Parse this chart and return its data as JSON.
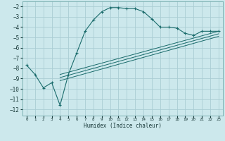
{
  "xlabel": "Humidex (Indice chaleur)",
  "background_color": "#cce8ec",
  "grid_color": "#aacdd4",
  "line_color": "#1a6b6b",
  "xlim": [
    -0.5,
    23.5
  ],
  "ylim": [
    -12.6,
    -1.5
  ],
  "yticks": [
    -2,
    -3,
    -4,
    -5,
    -6,
    -7,
    -8,
    -9,
    -10,
    -11,
    -12
  ],
  "xticks": [
    0,
    1,
    2,
    3,
    4,
    5,
    6,
    7,
    8,
    9,
    10,
    11,
    12,
    13,
    14,
    15,
    16,
    17,
    18,
    19,
    20,
    21,
    22,
    23
  ],
  "main_x": [
    0,
    1,
    2,
    3,
    4,
    5,
    6,
    7,
    8,
    9,
    10,
    11,
    12,
    13,
    14,
    15,
    16,
    17,
    18,
    19,
    20,
    21,
    22,
    23
  ],
  "main_y": [
    -7.7,
    -8.6,
    -9.9,
    -9.4,
    -11.6,
    -8.6,
    -6.5,
    -4.4,
    -3.3,
    -2.5,
    -2.1,
    -2.1,
    -2.2,
    -2.2,
    -2.5,
    -3.2,
    -4.0,
    -4.0,
    -4.1,
    -4.6,
    -4.8,
    -4.4,
    -4.4,
    -4.4
  ],
  "line2_x": [
    4,
    23
  ],
  "line2_y": [
    -8.6,
    -4.4
  ],
  "line3_x": [
    4,
    23
  ],
  "line3_y": [
    -8.9,
    -4.65
  ],
  "line4_x": [
    4,
    23
  ],
  "line4_y": [
    -9.2,
    -4.9
  ]
}
